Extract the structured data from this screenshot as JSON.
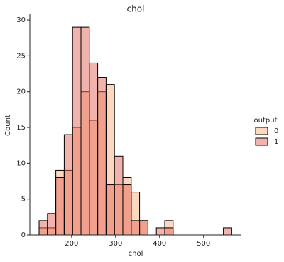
{
  "chart_data": {
    "type": "histogram",
    "title": "chol",
    "x_label": "chol",
    "y_label": "Count",
    "bins": [
      126,
      145.04,
      164.09,
      183.13,
      202.17,
      221.22,
      240.26,
      259.3,
      278.35,
      297.39,
      316.43,
      335.48,
      354.52,
      373.57,
      392.61,
      411.65,
      430.7,
      449.74,
      468.78,
      487.83,
      506.87,
      525.91,
      544.96,
      564
    ],
    "series": [
      {
        "name": "0",
        "color": "#f9b27e",
        "values": [
          1,
          1,
          9,
          9,
          15,
          20,
          16,
          20,
          21,
          7,
          8,
          6,
          2,
          0,
          0,
          2,
          0,
          0,
          0,
          0,
          0,
          0,
          0
        ]
      },
      {
        "name": "1",
        "color": "#e3685c",
        "values": [
          2,
          3,
          8,
          14,
          29,
          29,
          24,
          22,
          7,
          11,
          7,
          2,
          2,
          0,
          1,
          1,
          0,
          0,
          0,
          0,
          0,
          0,
          1
        ]
      }
    ],
    "legend_title": "output",
    "legend": "right",
    "xlim": [
      105,
      586
    ],
    "xticks": [
      200,
      300,
      400,
      500
    ],
    "ylim": [
      0,
      30.8
    ],
    "yticks": [
      0,
      5,
      10,
      15,
      20,
      25,
      30
    ]
  }
}
